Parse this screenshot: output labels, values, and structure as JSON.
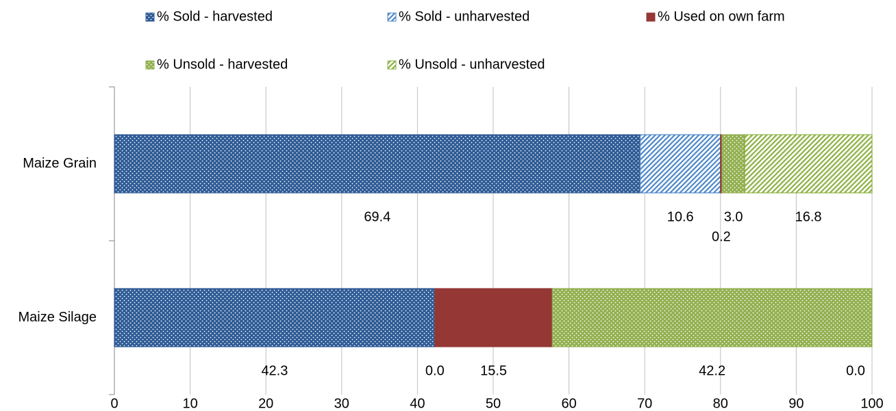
{
  "chart_data": {
    "type": "stacked-barh",
    "categories": [
      "Maize Grain",
      "Maize Silage"
    ],
    "series": [
      {
        "name": "% Sold - harvested",
        "color": "#2e5b95",
        "pattern": "dots",
        "values": [
          69.4,
          42.3
        ],
        "value_labels": [
          "69.4",
          "42.3"
        ]
      },
      {
        "name": "% Sold - unharvested",
        "color": "#4a86c8",
        "pattern": "hatch",
        "values": [
          10.6,
          0.0
        ],
        "value_labels": [
          "10.6",
          "0.0"
        ]
      },
      {
        "name": "% Used on own farm",
        "color": "#953735",
        "pattern": "solid",
        "values": [
          0.2,
          15.5
        ],
        "value_labels": [
          "0.2",
          "15.5"
        ]
      },
      {
        "name": "% Unsold - harvested",
        "color": "#92b050",
        "pattern": "dots",
        "values": [
          3.0,
          42.2
        ],
        "value_labels": [
          "3.0",
          "42.2"
        ]
      },
      {
        "name": "% Unsold - unharvested",
        "color": "#8bb040",
        "pattern": "hatch",
        "values": [
          16.8,
          0.0
        ],
        "value_labels": [
          "16.8",
          "0.0"
        ]
      }
    ],
    "xlim": [
      0,
      100
    ],
    "xticks": [
      0,
      10,
      20,
      30,
      40,
      50,
      60,
      70,
      80,
      90,
      100
    ],
    "grid": true,
    "legend": "top"
  }
}
